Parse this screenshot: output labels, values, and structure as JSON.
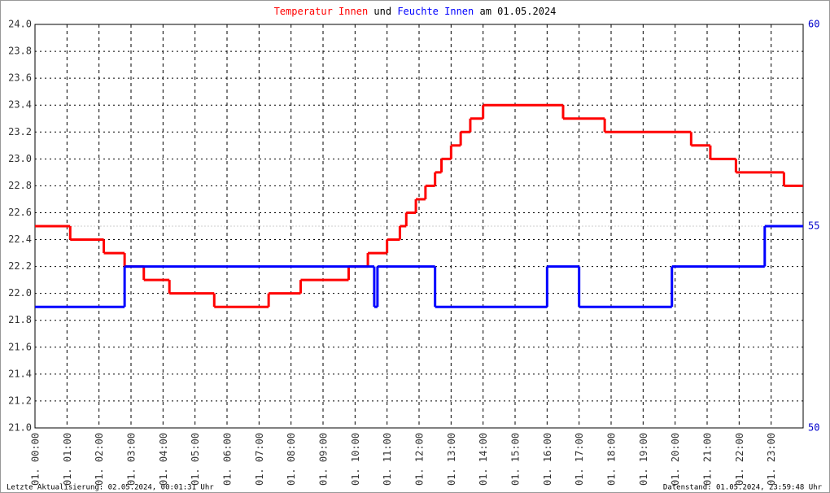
{
  "chart_data": {
    "type": "line",
    "step": true,
    "title_joiner": "und",
    "title_suffix": "am 01.05.2024",
    "footer_left": "Letzte Aktualisierung: 02.05.2024, 00:01:31 Uhr",
    "footer_right": "Datenstand: 01.05.2024, 23:59:48 Uhr",
    "xlim": [
      0,
      24
    ],
    "xticks": [
      {
        "value": 0,
        "label": "01. 00:00"
      },
      {
        "value": 1,
        "label": "01. 01:00"
      },
      {
        "value": 2,
        "label": "01. 02:00"
      },
      {
        "value": 3,
        "label": "01. 03:00"
      },
      {
        "value": 4,
        "label": "01. 04:00"
      },
      {
        "value": 5,
        "label": "01. 05:00"
      },
      {
        "value": 6,
        "label": "01. 06:00"
      },
      {
        "value": 7,
        "label": "01. 07:00"
      },
      {
        "value": 8,
        "label": "01. 08:00"
      },
      {
        "value": 9,
        "label": "01. 09:00"
      },
      {
        "value": 10,
        "label": "01. 10:00"
      },
      {
        "value": 11,
        "label": "01. 11:00"
      },
      {
        "value": 12,
        "label": "01. 12:00"
      },
      {
        "value": 13,
        "label": "01. 13:00"
      },
      {
        "value": 14,
        "label": "01. 14:00"
      },
      {
        "value": 15,
        "label": "01. 15:00"
      },
      {
        "value": 16,
        "label": "01. 16:00"
      },
      {
        "value": 17,
        "label": "01. 17:00"
      },
      {
        "value": 18,
        "label": "01. 18:00"
      },
      {
        "value": 19,
        "label": "01. 19:00"
      },
      {
        "value": 20,
        "label": "01. 20:00"
      },
      {
        "value": 21,
        "label": "01. 21:00"
      },
      {
        "value": 22,
        "label": "01. 22:00"
      },
      {
        "value": 23,
        "label": "01. 23:00"
      }
    ],
    "ylim": [
      21,
      24
    ],
    "yticks": [
      {
        "value": 21,
        "label": "21.0"
      },
      {
        "value": 21.2,
        "label": "21.2"
      },
      {
        "value": 21.4,
        "label": "21.4"
      },
      {
        "value": 21.6,
        "label": "21.6"
      },
      {
        "value": 21.8,
        "label": "21.8"
      },
      {
        "value": 22,
        "label": "22.0"
      },
      {
        "value": 22.2,
        "label": "22.2"
      },
      {
        "value": 22.4,
        "label": "22.4"
      },
      {
        "value": 22.6,
        "label": "22.6"
      },
      {
        "value": 22.8,
        "label": "22.8"
      },
      {
        "value": 23,
        "label": "23.0"
      },
      {
        "value": 23.2,
        "label": "23.2"
      },
      {
        "value": 23.4,
        "label": "23.4"
      },
      {
        "value": 23.6,
        "label": "23.6"
      },
      {
        "value": 23.8,
        "label": "23.8"
      },
      {
        "value": 24,
        "label": "24.0"
      }
    ],
    "y2lim": [
      50,
      60
    ],
    "y2ticks": [
      50,
      55,
      60
    ],
    "grid": true,
    "series": [
      {
        "name": "Temperatur Innen",
        "color": "#ff0000",
        "x": [
          0,
          1.1,
          2.15,
          2.8,
          3.4,
          4.2,
          5.6,
          7.3,
          8.3,
          9.8,
          10.4,
          11.0,
          11.4,
          11.6,
          11.9,
          12.2,
          12.5,
          12.7,
          13.0,
          13.3,
          13.6,
          14.0,
          16.5,
          17.8,
          20.5,
          21.1,
          21.9,
          23.4
        ],
        "values": [
          22.5,
          22.4,
          22.3,
          22.2,
          22.1,
          22.0,
          21.9,
          22.0,
          22.1,
          22.2,
          22.3,
          22.4,
          22.5,
          22.6,
          22.7,
          22.8,
          22.9,
          23.0,
          23.1,
          23.2,
          23.3,
          23.4,
          23.3,
          23.2,
          23.1,
          23.0,
          22.9,
          22.8
        ]
      },
      {
        "name": "Feuchte Innen",
        "color": "#0000ff",
        "axis": "y2",
        "x": [
          0,
          2.8,
          10.6,
          10.7,
          12.5,
          16.0,
          17.0,
          19.9,
          22.8
        ],
        "values": [
          53,
          54,
          53,
          54,
          53,
          54,
          53,
          54,
          55
        ]
      }
    ]
  }
}
